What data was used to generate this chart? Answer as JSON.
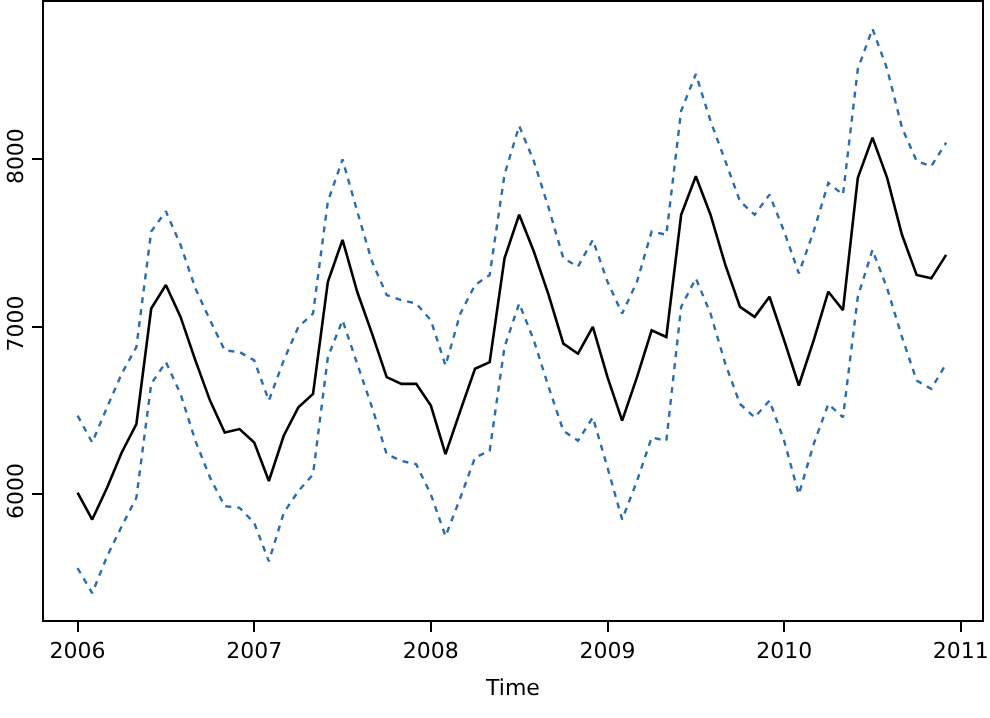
{
  "chart_data": {
    "type": "line",
    "xlabel": "Time",
    "x": [
      2006,
      2006.083,
      2006.167,
      2006.25,
      2006.333,
      2006.417,
      2006.5,
      2006.583,
      2006.667,
      2006.75,
      2006.833,
      2006.917,
      2007,
      2007.083,
      2007.167,
      2007.25,
      2007.333,
      2007.417,
      2007.5,
      2007.583,
      2007.667,
      2007.75,
      2007.833,
      2007.917,
      2008,
      2008.083,
      2008.167,
      2008.25,
      2008.333,
      2008.417,
      2008.5,
      2008.583,
      2008.667,
      2008.75,
      2008.833,
      2008.917,
      2009,
      2009.083,
      2009.167,
      2009.25,
      2009.333,
      2009.417,
      2009.5,
      2009.583,
      2009.667,
      2009.75,
      2009.833,
      2009.917,
      2010,
      2010.083,
      2010.167,
      2010.25,
      2010.333,
      2010.417,
      2010.5,
      2010.583,
      2010.667,
      2010.75,
      2010.833,
      2010.917
    ],
    "series": [
      {
        "color": "#000000",
        "line_style": "solid",
        "values": [
          6010,
          5850,
          6040,
          6250,
          6420,
          7110,
          7250,
          7060,
          6800,
          6560,
          6370,
          6390,
          6310,
          6080,
          6350,
          6520,
          6600,
          7270,
          7520,
          7210,
          6960,
          6700,
          6660,
          6660,
          6530,
          6240,
          6500,
          6750,
          6790,
          7410,
          7670,
          7450,
          7190,
          6900,
          6840,
          7000,
          6700,
          6440,
          6700,
          6980,
          6940,
          7670,
          7900,
          7670,
          7370,
          7120,
          7060,
          7180,
          6920,
          6650,
          6920,
          7210,
          7100,
          7890,
          8130,
          7890,
          7550,
          7310,
          7290,
          7430
        ]
      },
      {
        "color": "#2b6cb0",
        "line_style": "dotted",
        "values": [
          6470,
          6310,
          6520,
          6720,
          6880,
          7570,
          7690,
          7490,
          7230,
          7040,
          6860,
          6850,
          6800,
          6560,
          6800,
          7000,
          7080,
          7750,
          8000,
          7690,
          7390,
          7190,
          7160,
          7140,
          7040,
          6770,
          7080,
          7250,
          7310,
          7910,
          8200,
          7990,
          7710,
          7410,
          7360,
          7520,
          7270,
          7080,
          7270,
          7570,
          7550,
          8290,
          8510,
          8230,
          7990,
          7750,
          7670,
          7790,
          7570,
          7320,
          7570,
          7860,
          7790,
          8540,
          8780,
          8540,
          8190,
          7990,
          7960,
          8100
        ]
      },
      {
        "color": "#2b6cb0",
        "line_style": "dotted",
        "values": [
          5560,
          5410,
          5630,
          5810,
          5980,
          6660,
          6790,
          6600,
          6320,
          6100,
          5930,
          5920,
          5830,
          5600,
          5890,
          6020,
          6120,
          6820,
          7040,
          6780,
          6520,
          6240,
          6200,
          6180,
          6000,
          5750,
          5980,
          6220,
          6260,
          6880,
          7140,
          6920,
          6640,
          6380,
          6320,
          6460,
          6160,
          5850,
          6080,
          6340,
          6320,
          7120,
          7290,
          7080,
          6780,
          6540,
          6460,
          6560,
          6320,
          6000,
          6300,
          6540,
          6460,
          7180,
          7460,
          7230,
          6940,
          6680,
          6630,
          6780
        ]
      }
    ],
    "xlim": [
      2005.81,
      2011.12
    ],
    "xticks": [
      2006,
      2007,
      2008,
      2009,
      2010,
      2011
    ],
    "ylim": [
      5250,
      8940
    ],
    "yticks": [
      6000,
      7000,
      8000
    ],
    "marker": "none"
  }
}
